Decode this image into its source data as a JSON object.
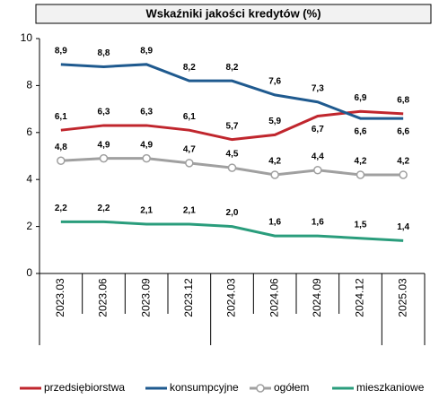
{
  "chart_data": {
    "type": "line",
    "title": "Wskaźniki jakości kredytów (%)",
    "categories": [
      "2023.03",
      "2023.06",
      "2023.09",
      "2023.12",
      "2024.03",
      "2024.06",
      "2024.09",
      "2024.12",
      "2025.03"
    ],
    "ylim": [
      0,
      10
    ],
    "yticks": [
      0,
      2,
      4,
      6,
      8,
      10
    ],
    "grid": false,
    "legend": "bottom",
    "series": [
      {
        "name": "przedsiębiorstwa",
        "color": "#c0262d",
        "values": [
          6.1,
          6.3,
          6.3,
          6.1,
          5.7,
          5.9,
          6.7,
          6.9,
          6.8
        ],
        "value_labels": [
          "6,1",
          "6,3",
          "6,3",
          "6,1",
          "5,7",
          "5,9",
          "6,7",
          "6,9",
          "6,8"
        ]
      },
      {
        "name": "konsumpcyjne",
        "color": "#1f5a8f",
        "values": [
          8.9,
          8.8,
          8.9,
          8.2,
          8.2,
          7.6,
          7.3,
          6.6,
          6.6
        ],
        "value_labels": [
          "8,9",
          "8,8",
          "8,9",
          "8,2",
          "8,2",
          "7,6",
          "7,3",
          "6,6",
          "6,6"
        ]
      },
      {
        "name": "ogółem",
        "color": "#a0a0a0",
        "marker": "circle",
        "values": [
          4.8,
          4.9,
          4.9,
          4.7,
          4.5,
          4.2,
          4.4,
          4.2,
          4.2
        ],
        "value_labels": [
          "4,8",
          "4,9",
          "4,9",
          "4,7",
          "4,5",
          "4,2",
          "4,4",
          "4,2",
          "4,2"
        ]
      },
      {
        "name": "mieszkaniowe",
        "color": "#2a9d7c",
        "values": [
          2.2,
          2.2,
          2.1,
          2.1,
          2.0,
          1.6,
          1.6,
          1.5,
          1.4
        ],
        "value_labels": [
          "2,2",
          "2,2",
          "2,1",
          "2,1",
          "2,0",
          "1,6",
          "1,6",
          "1,5",
          "1,4"
        ]
      }
    ]
  }
}
